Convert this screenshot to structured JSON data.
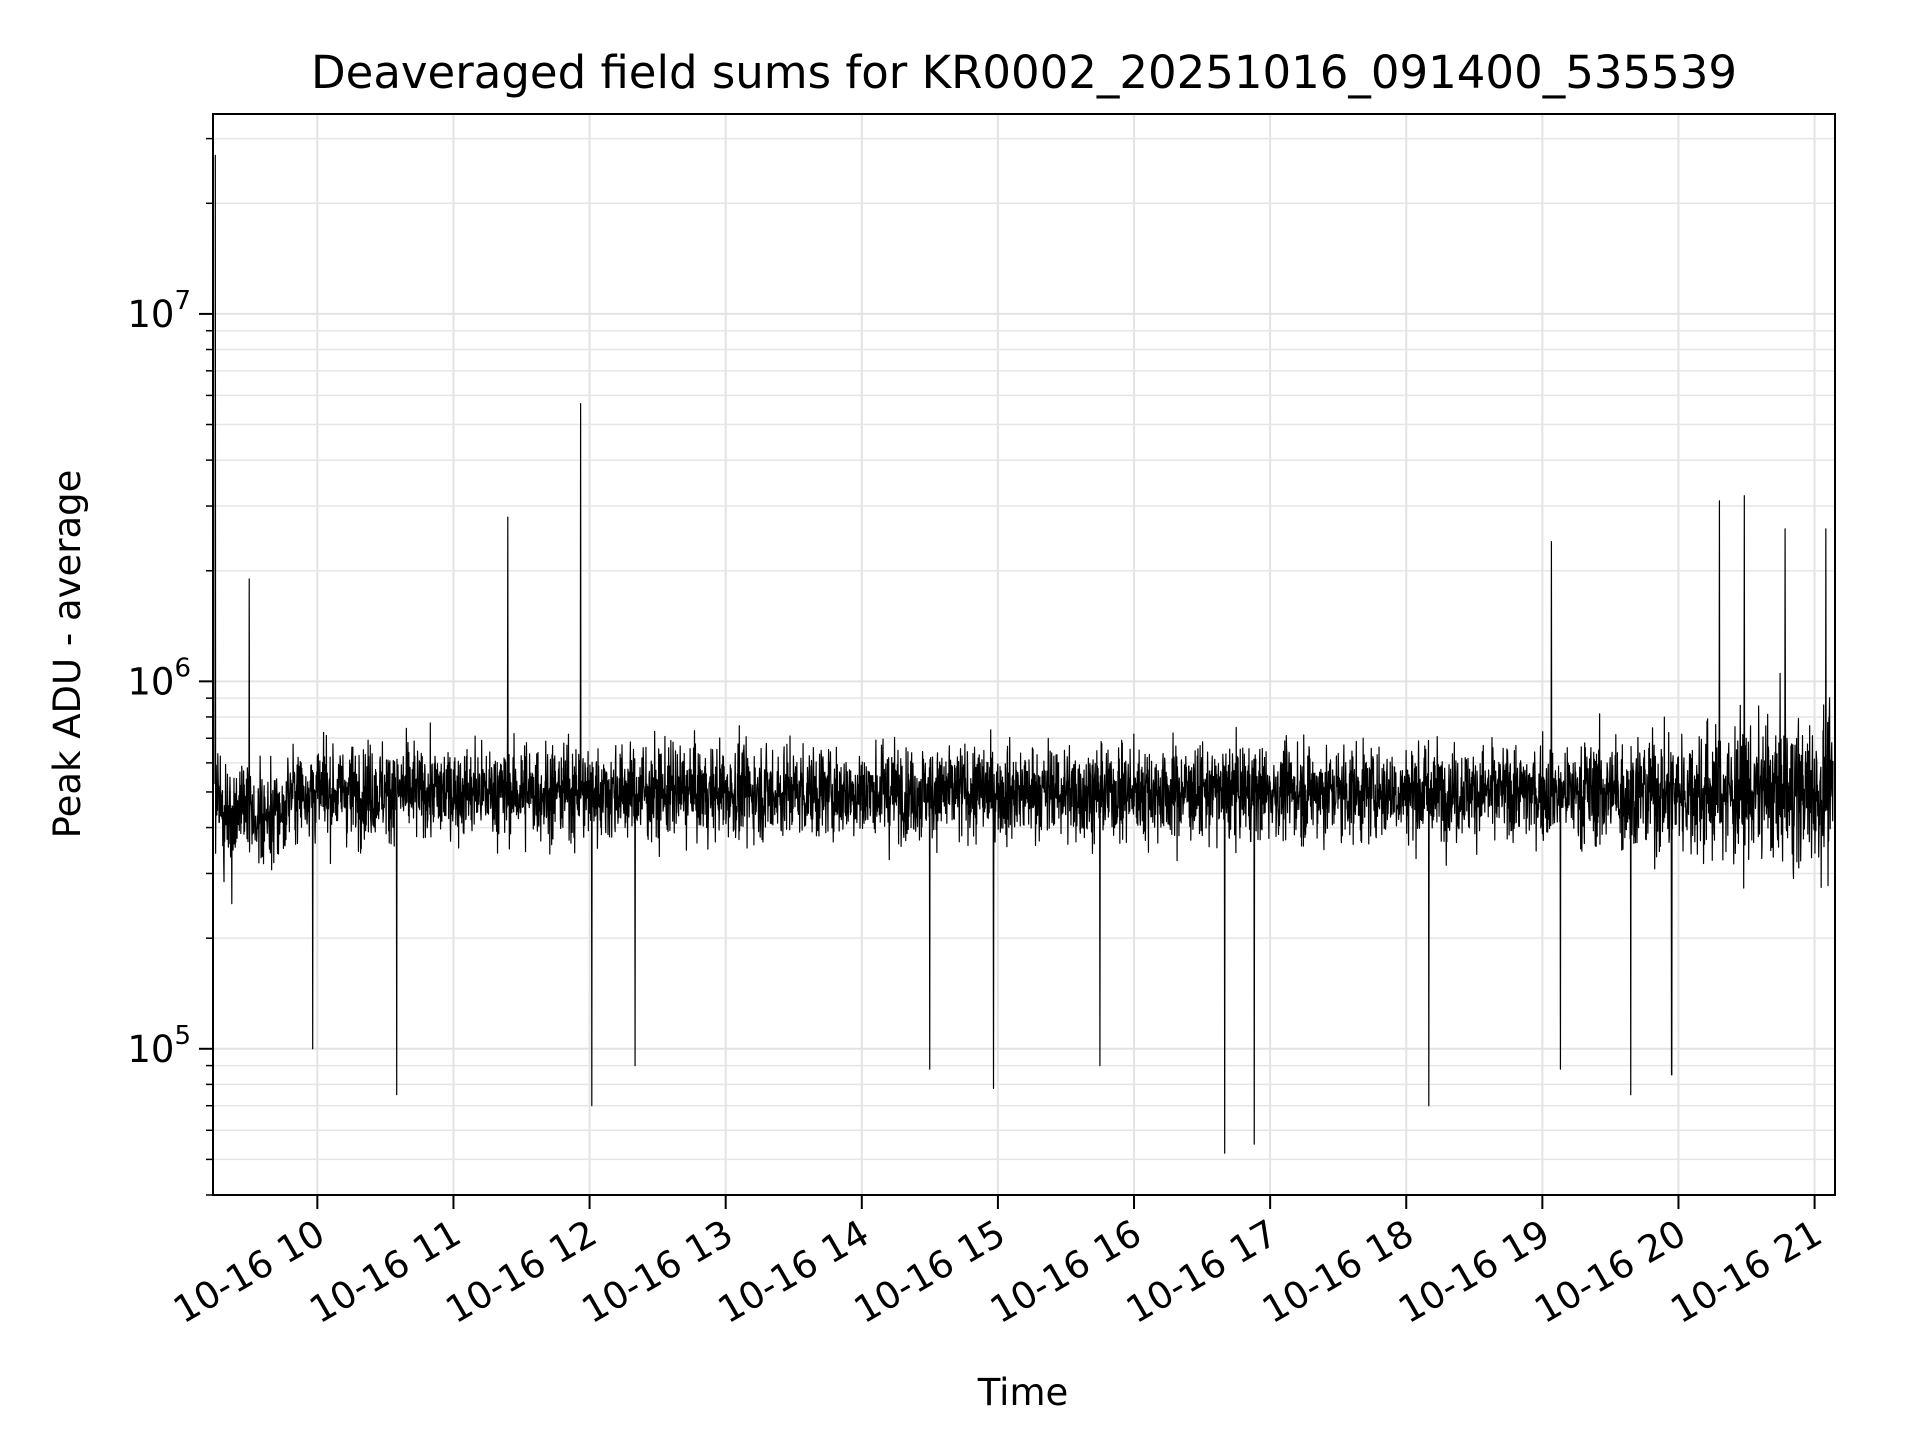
{
  "chart_data": {
    "type": "line",
    "title": "Deaveraged field sums for KR0002_20251016_091400_535539",
    "xlabel": "Time",
    "ylabel": "Peak ADU - average",
    "yscale": "log",
    "ylim": [
      40000,
      35000000
    ],
    "xlim": [
      "10-16 09:14",
      "10-16 21:09"
    ],
    "grid": true,
    "x_ticks": [
      "10-16 10",
      "10-16 11",
      "10-16 12",
      "10-16 13",
      "10-16 14",
      "10-16 15",
      "10-16 16",
      "10-16 17",
      "10-16 18",
      "10-16 19",
      "10-16 20",
      "10-16 21"
    ],
    "y_ticks": [
      {
        "base": "10",
        "exp": "5",
        "value": 100000
      },
      {
        "base": "10",
        "exp": "6",
        "value": 1000000
      },
      {
        "base": "10",
        "exp": "7",
        "value": 10000000
      }
    ],
    "series": [
      {
        "color": "#000000",
        "baseline": 500000,
        "x": [
          "10-16 09:15",
          "10-16 09:30",
          "10-16 09:58",
          "10-16 10:35",
          "10-16 11:24",
          "10-16 11:56",
          "10-16 12:01",
          "10-16 12:20",
          "10-16 14:30",
          "10-16 14:58",
          "10-16 15:45",
          "10-16 16:40",
          "10-16 16:53",
          "10-16 18:10",
          "10-16 19:04",
          "10-16 19:08",
          "10-16 19:39",
          "10-16 19:57",
          "10-16 20:18",
          "10-16 20:29",
          "10-16 20:47",
          "10-16 21:05"
        ],
        "y": [
          27000000,
          1900000,
          100000,
          75000,
          2800000,
          5700000,
          70000,
          90000,
          88000,
          78000,
          90000,
          52000,
          55000,
          70000,
          2400000,
          88000,
          75000,
          85000,
          3100000,
          3200000,
          2600000,
          2600000
        ]
      }
    ]
  }
}
